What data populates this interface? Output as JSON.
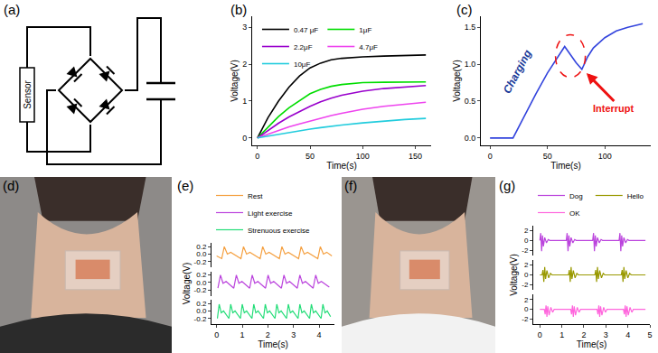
{
  "diagram": {
    "panel": "(a)",
    "sensor": "Sensor"
  },
  "photos": [
    {
      "panel": "(d)"
    },
    {
      "panel": "(f)"
    }
  ],
  "chart_data": [
    {
      "panel": "(b)",
      "type": "line",
      "legend": "top",
      "grid": false,
      "x_label": "Time(s)",
      "y_label": "Voltage(V)",
      "xlim": [
        -5,
        165
      ],
      "xticks": [
        0,
        50,
        100,
        150
      ],
      "ylim": [
        -0.2,
        3.3
      ],
      "yticks": [
        0,
        1,
        2,
        3
      ],
      "x": [
        0,
        10,
        20,
        30,
        40,
        50,
        60,
        70,
        80,
        100,
        120,
        140,
        160
      ],
      "series": [
        {
          "name": "0.47 μF",
          "color": "#000000",
          "values": [
            0,
            0.55,
            1.0,
            1.38,
            1.68,
            1.9,
            2.03,
            2.12,
            2.16,
            2.2,
            2.22,
            2.24,
            2.25
          ]
        },
        {
          "name": "1μF",
          "color": "#00dd00",
          "values": [
            0,
            0.3,
            0.58,
            0.82,
            1.02,
            1.2,
            1.32,
            1.4,
            1.45,
            1.5,
            1.51,
            1.52,
            1.52
          ]
        },
        {
          "name": "2.2μF",
          "color": "#9900cc",
          "values": [
            0,
            0.2,
            0.4,
            0.57,
            0.72,
            0.86,
            0.98,
            1.08,
            1.16,
            1.27,
            1.34,
            1.38,
            1.42
          ]
        },
        {
          "name": "4.7μF",
          "color": "#ee44ee",
          "values": [
            0,
            0.1,
            0.2,
            0.3,
            0.38,
            0.46,
            0.54,
            0.61,
            0.67,
            0.78,
            0.86,
            0.92,
            0.97
          ]
        },
        {
          "name": "10μF",
          "color": "#22ccdd",
          "values": [
            0,
            0.05,
            0.1,
            0.15,
            0.2,
            0.24,
            0.28,
            0.32,
            0.35,
            0.41,
            0.46,
            0.5,
            0.53
          ]
        }
      ]
    },
    {
      "panel": "(c)",
      "type": "line",
      "grid": false,
      "x_label": "Time(s)",
      "y_label": "Voltage(V)",
      "xlim": [
        -8,
        140
      ],
      "xticks": [
        0,
        50,
        100
      ],
      "ylim": [
        -0.1,
        1.65
      ],
      "yticks": [
        {
          "value": 0,
          "label": "0.0"
        },
        0.5,
        {
          "value": 1,
          "label": "1.0"
        },
        1.5
      ],
      "x": [
        0,
        20,
        30,
        40,
        50,
        60,
        65,
        70,
        75,
        80,
        85,
        90,
        100,
        110,
        120,
        133
      ],
      "series": [
        {
          "color": "#3344dd",
          "values": [
            0,
            0,
            0.3,
            0.6,
            0.88,
            1.12,
            1.24,
            1.13,
            1.02,
            0.93,
            1.1,
            1.22,
            1.36,
            1.45,
            1.5,
            1.55
          ]
        }
      ],
      "annotations": [
        {
          "text": "Charging",
          "color": "#1a3a99"
        },
        {
          "text": "Interrupt",
          "color": "#ee1111"
        }
      ]
    },
    {
      "panel": "(e)",
      "type": "line",
      "legend": "top",
      "grid": false,
      "stacked": true,
      "x_label": "Time(s)",
      "y_label": "Voltage(V)",
      "xlim": [
        -0.2,
        4.6
      ],
      "xticks": [
        0,
        1,
        2,
        3,
        4
      ],
      "ylim": [
        -0.35,
        0.3
      ],
      "yticks": [
        -0.2,
        {
          "value": 0,
          "label": "0.0"
        },
        0.2
      ],
      "series": [
        {
          "name": "Rest",
          "color": "#f5a040",
          "x": [
            0.0,
            0.2,
            0.3,
            0.42,
            0.55,
            0.95,
            1.05,
            1.17,
            1.3,
            1.7,
            1.8,
            1.92,
            2.05,
            2.45,
            2.55,
            2.67,
            2.8,
            3.2,
            3.3,
            3.42,
            3.55,
            3.95,
            4.05,
            4.17,
            4.3,
            4.5
          ],
          "values": [
            -0.05,
            -0.12,
            0.2,
            0.0,
            0.05,
            -0.12,
            0.2,
            0.0,
            0.05,
            -0.12,
            0.2,
            0.0,
            0.05,
            -0.12,
            0.2,
            0.0,
            0.05,
            -0.12,
            0.2,
            0.0,
            0.05,
            -0.12,
            0.2,
            0.0,
            0.05,
            -0.05
          ]
        },
        {
          "name": "Light exercise",
          "color": "#bb44dd",
          "x": [
            0.05,
            0.15,
            0.25,
            0.37,
            0.67,
            0.77,
            0.87,
            0.99,
            1.29,
            1.39,
            1.49,
            1.61,
            1.91,
            2.01,
            2.11,
            2.23,
            2.53,
            2.63,
            2.73,
            2.85,
            3.15,
            3.25,
            3.35,
            3.47,
            3.77,
            3.87,
            3.97,
            4.09,
            4.4
          ],
          "values": [
            -0.15,
            0.2,
            -0.02,
            0.03,
            -0.15,
            0.2,
            -0.02,
            0.03,
            -0.15,
            0.2,
            -0.02,
            0.03,
            -0.15,
            0.2,
            -0.02,
            0.03,
            -0.15,
            0.2,
            -0.02,
            0.03,
            -0.15,
            0.2,
            -0.02,
            0.03,
            -0.15,
            0.2,
            -0.02,
            0.03,
            -0.12
          ]
        },
        {
          "name": "Strenuous exercise",
          "color": "#22dd77",
          "x": [
            0.03,
            0.1,
            0.18,
            0.27,
            0.48,
            0.55,
            0.63,
            0.72,
            0.93,
            1.0,
            1.08,
            1.17,
            1.38,
            1.45,
            1.53,
            1.62,
            1.83,
            1.9,
            1.98,
            2.07,
            2.28,
            2.35,
            2.43,
            2.52,
            2.73,
            2.8,
            2.88,
            2.97,
            3.18,
            3.25,
            3.33,
            3.42,
            3.63,
            3.7,
            3.78,
            3.87,
            4.08,
            4.15,
            4.23,
            4.32,
            4.45
          ],
          "values": [
            -0.2,
            0.18,
            -0.05,
            0.0,
            -0.2,
            0.18,
            -0.05,
            0.0,
            -0.2,
            0.18,
            -0.05,
            0.0,
            -0.2,
            0.18,
            -0.05,
            0.0,
            -0.2,
            0.18,
            -0.05,
            0.0,
            -0.2,
            0.18,
            -0.05,
            0.0,
            -0.2,
            0.18,
            -0.05,
            0.0,
            -0.2,
            0.18,
            -0.05,
            0.0,
            -0.2,
            0.18,
            -0.05,
            0.0,
            -0.2,
            0.18,
            -0.05,
            0.0,
            -0.15
          ]
        }
      ]
    },
    {
      "panel": "(g)",
      "type": "line",
      "legend": "top",
      "grid": false,
      "stacked": true,
      "x_label": "Time(s)",
      "y_label": "Voltage(V)",
      "xlim": [
        -0.3,
        5
      ],
      "xticks": [
        0,
        1,
        2,
        3,
        4,
        5
      ],
      "ylim": [
        -3,
        3
      ],
      "yticks": [
        -2,
        0,
        2
      ],
      "series": [
        {
          "name": "Dog",
          "color": "#bb44dd",
          "x": [
            0.0,
            0.04,
            0.08,
            0.12,
            0.16,
            0.22,
            0.3,
            0.38,
            0.45,
            1.2,
            1.24,
            1.28,
            1.32,
            1.36,
            1.42,
            1.5,
            1.58,
            1.65,
            2.4,
            2.44,
            2.48,
            2.52,
            2.56,
            2.62,
            2.7,
            2.78,
            2.85,
            3.6,
            3.64,
            3.68,
            3.72,
            3.76,
            3.82,
            3.9,
            3.98,
            4.05,
            4.8
          ],
          "values": [
            0,
            1.5,
            -2.2,
            1.0,
            -1.2,
            0.6,
            -0.5,
            0.2,
            0,
            0,
            1.5,
            -2.2,
            1.0,
            -1.2,
            0.6,
            -0.5,
            0.2,
            0,
            0,
            1.5,
            -2.2,
            1.0,
            -1.2,
            0.6,
            -0.5,
            0.2,
            0,
            0,
            1.5,
            -2.2,
            1.0,
            -1.2,
            0.6,
            -0.5,
            0.2,
            0,
            0
          ]
        },
        {
          "name": "Hello",
          "color": "#999900",
          "x": [
            0.0,
            0.1,
            0.14,
            0.18,
            0.22,
            0.26,
            0.32,
            0.4,
            0.48,
            0.55,
            1.3,
            1.34,
            1.38,
            1.42,
            1.46,
            1.52,
            1.6,
            1.68,
            1.75,
            2.5,
            2.54,
            2.58,
            2.62,
            2.66,
            2.72,
            2.8,
            2.88,
            2.95,
            3.7,
            3.74,
            3.78,
            3.82,
            3.86,
            3.92,
            4.0,
            4.08,
            4.15,
            4.8
          ],
          "values": [
            0,
            0,
            1.0,
            -1.4,
            1.6,
            -0.8,
            0.9,
            -0.6,
            0.3,
            0,
            0,
            1.0,
            -1.4,
            1.6,
            -0.8,
            0.9,
            -0.6,
            0.3,
            0,
            0,
            1.0,
            -1.4,
            1.6,
            -0.8,
            0.9,
            -0.6,
            0.3,
            0,
            0,
            1.0,
            -1.4,
            1.6,
            -0.8,
            0.9,
            -0.6,
            0.3,
            0,
            0
          ]
        },
        {
          "name": "OK",
          "color": "#ff66dd",
          "x": [
            0.0,
            0.2,
            0.24,
            0.28,
            0.32,
            0.36,
            0.42,
            0.5,
            0.58,
            0.65,
            1.4,
            1.44,
            1.48,
            1.52,
            1.56,
            1.62,
            1.7,
            1.78,
            1.85,
            2.6,
            2.64,
            2.68,
            2.72,
            2.76,
            2.82,
            2.9,
            2.98,
            3.05,
            3.8,
            3.84,
            3.88,
            3.92,
            3.96,
            4.02,
            4.1,
            4.18,
            4.25,
            4.8
          ],
          "values": [
            0,
            0,
            -1.0,
            0.8,
            -1.5,
            0.6,
            -1.2,
            0.4,
            -0.6,
            0,
            0,
            -1.0,
            0.8,
            -1.5,
            0.6,
            -1.2,
            0.4,
            -0.6,
            0,
            0,
            -1.0,
            0.8,
            -1.5,
            0.6,
            -1.2,
            0.4,
            -0.6,
            0,
            0,
            -1.0,
            0.8,
            -1.5,
            0.6,
            -1.2,
            0.4,
            -0.6,
            0,
            0
          ]
        }
      ]
    }
  ]
}
